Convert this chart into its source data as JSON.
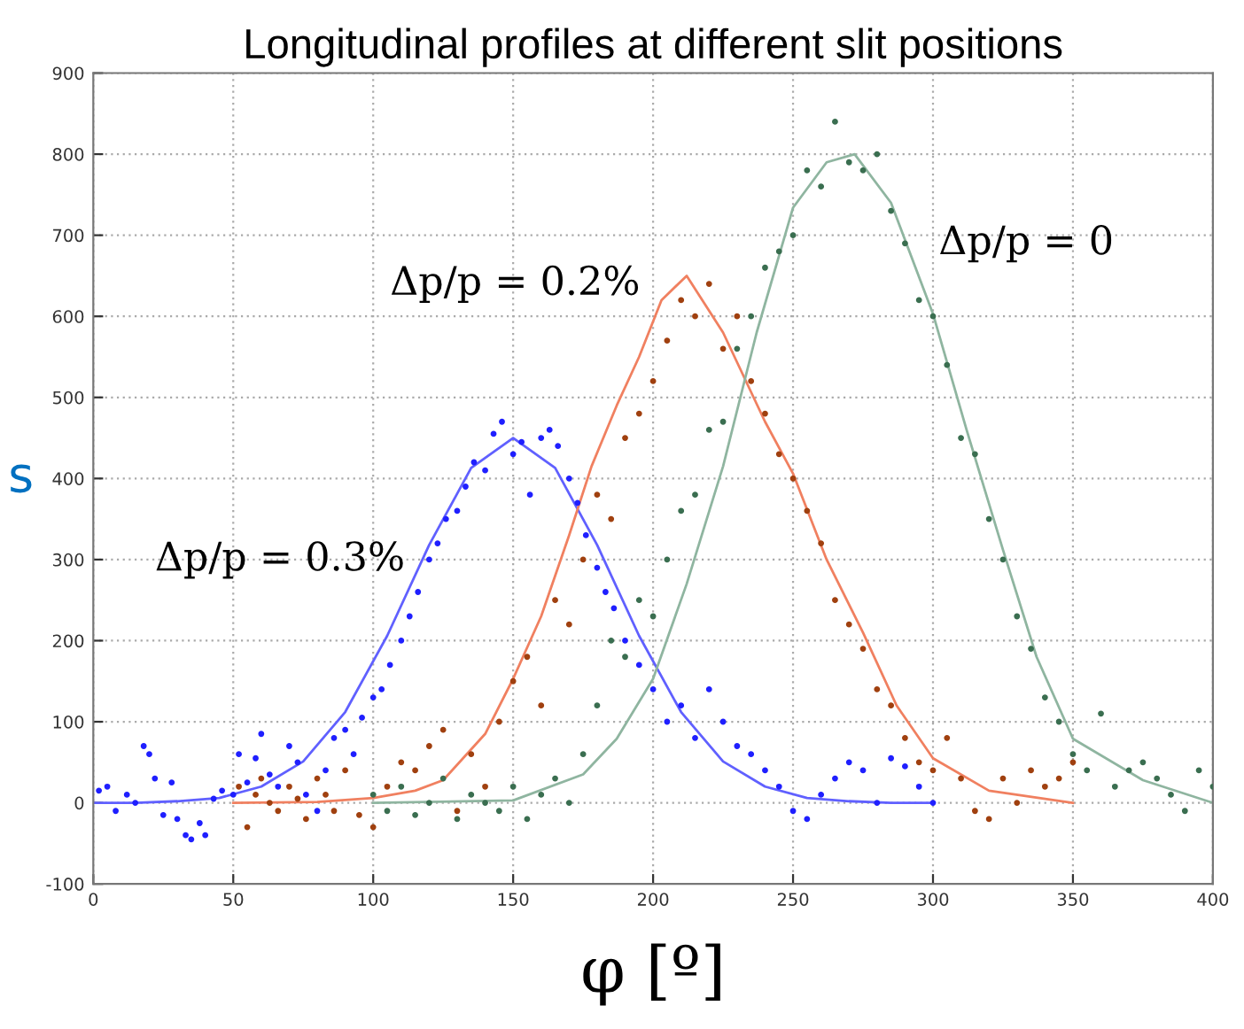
{
  "chart_data": {
    "type": "scatter",
    "title": "Longitudinal profiles at different slit positions",
    "xlabel": "φ [º]",
    "ylabel": "s",
    "xlim": [
      0,
      400
    ],
    "xticks": [
      0,
      50,
      100,
      150,
      200,
      250,
      300,
      350,
      400
    ],
    "ylim": [
      -100,
      900
    ],
    "yticks": [
      -100,
      0,
      100,
      200,
      300,
      400,
      500,
      600,
      700,
      800,
      900
    ],
    "grid": true,
    "marker": "circle",
    "series": [
      {
        "color": "#1f1fff",
        "x": [
          2,
          5,
          8,
          12,
          15,
          18,
          20,
          22,
          25,
          28,
          30,
          33,
          35,
          38,
          40,
          43,
          46,
          50,
          52,
          55,
          58,
          60,
          63,
          66,
          70,
          73,
          76,
          80,
          83,
          86,
          90,
          93,
          96,
          100,
          103,
          106,
          110,
          113,
          116,
          120,
          123,
          126,
          130,
          133,
          136,
          140,
          143,
          146,
          150,
          153,
          156,
          160,
          163,
          166,
          170,
          173,
          176,
          180,
          183,
          186,
          190,
          195,
          200,
          205,
          210,
          215,
          220,
          225,
          230,
          235,
          240,
          245,
          250,
          255,
          260,
          265,
          270,
          275,
          280,
          285,
          290,
          295,
          300
        ],
        "values": [
          15,
          20,
          -10,
          10,
          0,
          70,
          60,
          30,
          -15,
          25,
          -20,
          -40,
          -45,
          -25,
          -40,
          5,
          15,
          10,
          60,
          25,
          55,
          85,
          35,
          20,
          70,
          50,
          10,
          -10,
          40,
          80,
          90,
          60,
          105,
          130,
          140,
          170,
          200,
          230,
          260,
          300,
          320,
          350,
          360,
          390,
          420,
          410,
          455,
          470,
          430,
          445,
          380,
          450,
          460,
          440,
          400,
          370,
          330,
          290,
          260,
          240,
          200,
          170,
          140,
          100,
          120,
          80,
          140,
          100,
          70,
          60,
          40,
          20,
          -10,
          -20,
          10,
          30,
          50,
          40,
          0,
          55,
          45,
          20,
          0
        ]
      },
      {
        "color": "#a0400f",
        "x": [
          52,
          55,
          58,
          60,
          63,
          66,
          70,
          73,
          76,
          80,
          83,
          86,
          90,
          95,
          100,
          105,
          110,
          115,
          120,
          125,
          130,
          135,
          140,
          145,
          150,
          155,
          160,
          165,
          170,
          175,
          180,
          185,
          190,
          195,
          200,
          205,
          210,
          215,
          220,
          225,
          230,
          235,
          240,
          245,
          250,
          255,
          260,
          265,
          270,
          275,
          280,
          285,
          290,
          295,
          300,
          305,
          310,
          315,
          320,
          325,
          330,
          335,
          340,
          345,
          350
        ],
        "values": [
          20,
          -30,
          10,
          30,
          0,
          -10,
          20,
          5,
          -20,
          30,
          10,
          -10,
          40,
          -15,
          -30,
          20,
          50,
          40,
          70,
          90,
          -10,
          60,
          20,
          100,
          150,
          180,
          120,
          250,
          220,
          300,
          380,
          350,
          450,
          480,
          520,
          570,
          620,
          600,
          640,
          560,
          600,
          520,
          480,
          430,
          400,
          360,
          320,
          250,
          220,
          190,
          140,
          120,
          80,
          50,
          40,
          80,
          30,
          -10,
          -20,
          30,
          0,
          40,
          20,
          30,
          50
        ]
      },
      {
        "color": "#3a6e50",
        "x": [
          100,
          105,
          110,
          115,
          120,
          125,
          130,
          135,
          140,
          145,
          150,
          155,
          160,
          165,
          170,
          175,
          180,
          185,
          190,
          195,
          200,
          205,
          210,
          215,
          220,
          225,
          230,
          235,
          240,
          245,
          250,
          255,
          260,
          265,
          270,
          275,
          280,
          285,
          290,
          295,
          300,
          305,
          310,
          315,
          320,
          325,
          330,
          335,
          340,
          345,
          350,
          355,
          360,
          365,
          370,
          375,
          380,
          385,
          390,
          395,
          400
        ],
        "values": [
          10,
          -10,
          20,
          -15,
          0,
          30,
          -20,
          10,
          0,
          -10,
          20,
          -20,
          10,
          30,
          0,
          60,
          120,
          200,
          180,
          250,
          230,
          300,
          360,
          380,
          460,
          470,
          560,
          600,
          660,
          680,
          700,
          780,
          760,
          840,
          790,
          780,
          800,
          730,
          690,
          620,
          600,
          540,
          450,
          430,
          350,
          300,
          230,
          190,
          130,
          100,
          60,
          40,
          110,
          20,
          40,
          50,
          30,
          10,
          -10,
          40,
          20
        ]
      },
      {
        "type": "line",
        "marker": "none",
        "color": "#6060ff",
        "x": [
          0,
          15,
          30,
          45,
          60,
          75,
          90,
          105,
          120,
          135,
          150,
          165,
          180,
          195,
          210,
          225,
          240,
          255,
          270,
          285,
          300
        ],
        "values": [
          0,
          0,
          2,
          6,
          20,
          51,
          112,
          206,
          318,
          413,
          450,
          413,
          318,
          206,
          112,
          51,
          20,
          6,
          2,
          0,
          0
        ]
      },
      {
        "type": "line",
        "marker": "none",
        "color": "#f08060",
        "x": [
          50,
          80,
          100,
          115,
          125,
          140,
          150,
          160,
          170,
          178,
          187,
          195,
          203,
          212,
          225,
          240,
          250,
          262,
          275,
          287,
          300,
          320,
          350
        ],
        "values": [
          0,
          1,
          6,
          15,
          28,
          85,
          153,
          230,
          330,
          415,
          490,
          550,
          620,
          650,
          580,
          470,
          406,
          300,
          210,
          120,
          55,
          15,
          0
        ]
      },
      {
        "type": "line",
        "marker": "none",
        "color": "#8fb5a0",
        "x": [
          100,
          150,
          175,
          187,
          200,
          212,
          225,
          237,
          250,
          262,
          272,
          285,
          300,
          312,
          325,
          337,
          350,
          375,
          400
        ],
        "values": [
          0,
          3,
          35,
          79,
          153,
          270,
          415,
          580,
          734,
          790,
          800,
          740,
          603,
          460,
          312,
          180,
          79,
          28,
          0
        ]
      }
    ],
    "annotations": [
      "Δp/p = 0.3%",
      "Δp/p = 0.2%",
      "Δp/p = 0"
    ]
  }
}
